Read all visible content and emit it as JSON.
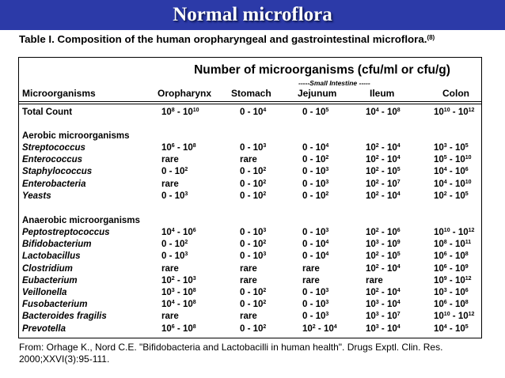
{
  "banner": {
    "title": "Normal microflora"
  },
  "table": {
    "caption": "Table I. Composition of the human oropharyngeal and gastrointestinal microflora.",
    "caption_ref": "(8)",
    "group_header": "Number of microorganisms (cfu/ml or cfu/g)",
    "small_intestine_label": "-----Small Intestine -----",
    "headers": [
      "Microorganisms",
      "Oropharynx",
      "Stomach",
      "Jejunum",
      "Ileum",
      "Colon"
    ],
    "total": {
      "name": "Total Count",
      "values": [
        "10^8 - 10^10",
        "0 - 10^4",
        "0 - 10^5",
        "10^4 - 10^8",
        "10^10 - 10^12"
      ]
    },
    "aerobic_title": "Aerobic microorganisms",
    "aerobic": [
      {
        "name": "Streptococcus",
        "values": [
          "10^6 - 10^8",
          "0 - 10^3",
          "0 - 10^4",
          "10^2 - 10^4",
          "10^3 - 10^5"
        ]
      },
      {
        "name": "Enterococcus",
        "values": [
          "rare",
          "rare",
          "0 - 10^2",
          "10^2 - 10^4",
          "10^5 - 10^10"
        ]
      },
      {
        "name": "Staphylococcus",
        "values": [
          "0 - 10^2",
          "0 - 10^2",
          "0 - 10^3",
          "10^2 - 10^5",
          "10^4 - 10^6"
        ]
      },
      {
        "name": "Enterobacteria",
        "values": [
          "rare",
          "0 - 10^2",
          "0 - 10^3",
          "10^2 - 10^7",
          "10^4 - 10^10"
        ]
      },
      {
        "name": "Yeasts",
        "values": [
          "0 - 10^3",
          "0 - 10^2",
          "0 - 10^2",
          "10^2 - 10^4",
          "10^2 - 10^5"
        ]
      }
    ],
    "anaerobic_title": "Anaerobic microorganisms",
    "anaerobic": [
      {
        "name": "Peptostreptococcus",
        "values": [
          "10^4 - 10^6",
          "0 - 10^3",
          "0 - 10^3",
          "10^2 - 10^6",
          "10^10 - 10^12"
        ]
      },
      {
        "name": "Bifidobacterium",
        "values": [
          "0 - 10^2",
          "0 - 10^2",
          "0 - 10^4",
          "10^3 - 10^9",
          "10^8 - 10^11"
        ]
      },
      {
        "name": "Lactobacillus",
        "values": [
          "0 - 10^3",
          "0 - 10^3",
          "0 - 10^4",
          "10^2 - 10^5",
          "10^6 - 10^8"
        ]
      },
      {
        "name": "Clostridium",
        "values": [
          "rare",
          "rare",
          "rare",
          "10^2 - 10^4",
          "10^6 - 10^9"
        ]
      },
      {
        "name": "Eubacterium",
        "values": [
          "10^2 - 10^3",
          "rare",
          "rare",
          "rare",
          "10^9 - 10^12"
        ]
      },
      {
        "name": "Veillonella",
        "values": [
          "10^3 - 10^8",
          "0 - 10^2",
          "0 - 10^3",
          "10^2 - 10^4",
          "10^3 - 10^6"
        ]
      },
      {
        "name": "Fusobacterium",
        "values": [
          "10^4 - 10^8",
          "0 - 10^2",
          "0 - 10^3",
          "10^3 - 10^4",
          "10^6 - 10^8"
        ]
      },
      {
        "name": "Bacteroides fragilis",
        "values": [
          "rare",
          "rare",
          "0 - 10^3",
          "10^3 - 10^7",
          "10^10 - 10^12"
        ]
      },
      {
        "name": "Prevotella",
        "values": [
          "10^6 - 10^8",
          "0 - 10^2",
          "10^2 - 10^4",
          "10^3 - 10^4",
          "10^4 - 10^5"
        ]
      }
    ],
    "source": "From: Orhage K., Nord C.E. \"Bifidobacteria and Lactobacilli in human health\". Drugs Exptl. Clin. Res. 2000;XXVI(3):95-111."
  },
  "colors": {
    "banner": "#2c3aa8",
    "banner_text": "#ffffff"
  }
}
